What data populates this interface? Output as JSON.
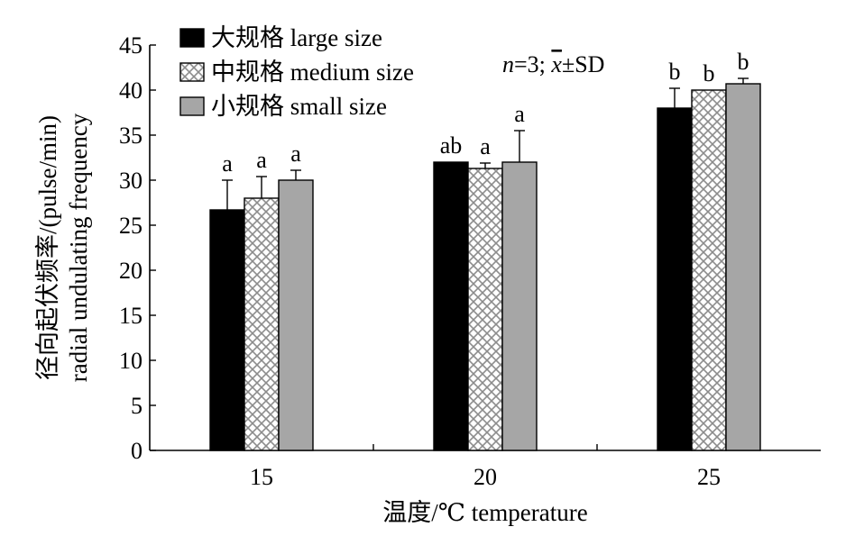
{
  "chart_data": {
    "type": "bar",
    "xlabel": "温度/℃ temperature",
    "ylabel_line1": "径向起伏频率/(pulse/min)",
    "ylabel_line2": "radial undulating frequency",
    "annotation": "n=3; x̄±SD",
    "annotation_parts": {
      "n": "n",
      "eq": "=3; ",
      "xbar": "x",
      "pm": "±SD"
    },
    "categories": [
      "15",
      "20",
      "25"
    ],
    "ylim": [
      0,
      45
    ],
    "yticks": [
      "0",
      "5",
      "10",
      "15",
      "20",
      "25",
      "30",
      "35",
      "40",
      "45"
    ],
    "legend_position": "top-left",
    "grid": false,
    "series": [
      {
        "name": "大规格 large size",
        "fill": "solid-black",
        "color": "#000000",
        "values": [
          26.7,
          32.0,
          38.0
        ],
        "errors": [
          3.3,
          0,
          2.2
        ],
        "labels": [
          "a",
          "ab",
          "b"
        ]
      },
      {
        "name": "中规格 medium size",
        "fill": "crosshatch",
        "color": "#ffffff",
        "values": [
          28.0,
          31.3,
          40.0
        ],
        "errors": [
          2.4,
          0.6,
          0
        ],
        "labels": [
          "a",
          "a",
          "b"
        ]
      },
      {
        "name": "小规格 small size",
        "fill": "solid-gray",
        "color": "#a6a6a6",
        "values": [
          30.0,
          32.0,
          40.7
        ],
        "errors": [
          1.1,
          3.5,
          0.6
        ],
        "labels": [
          "a",
          "a",
          "b"
        ]
      }
    ]
  }
}
